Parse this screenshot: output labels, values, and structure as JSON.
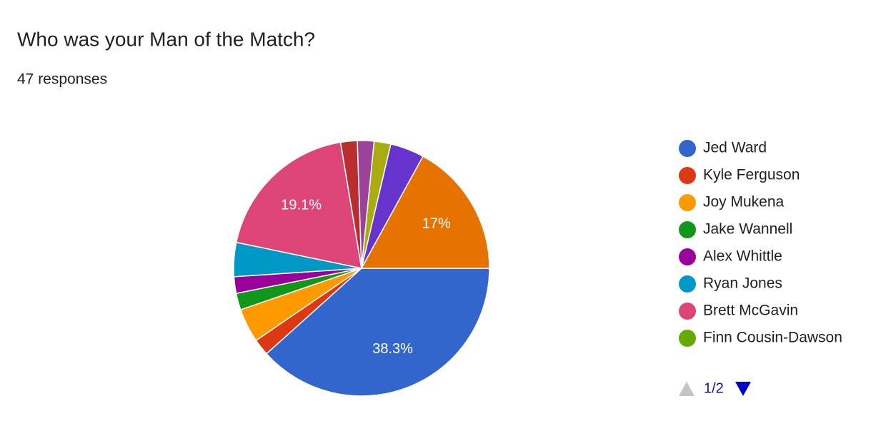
{
  "chart_data": {
    "type": "pie",
    "title": "Who was your Man of the Match?",
    "subtitle": "47 responses",
    "categories": [
      "Jed Ward",
      "Kyle Ferguson",
      "Joy Mukena",
      "Jake Wannell",
      "Alex Whittle",
      "Ryan Jones",
      "Brett McGavin",
      "Finn Cousin-Dawson",
      null,
      null,
      null,
      null,
      null
    ],
    "values": [
      38.3,
      2.1,
      4.3,
      2.1,
      2.1,
      4.3,
      19.1,
      0,
      2.1,
      2.1,
      2.1,
      4.3,
      17
    ],
    "value_labels": [
      "38.3%",
      null,
      null,
      null,
      null,
      null,
      "19.1%",
      null,
      null,
      null,
      null,
      null,
      "17%"
    ],
    "colors": [
      "#3366cc",
      "#dc3912",
      "#ff9900",
      "#109618",
      "#990099",
      "#0099c6",
      "#dd4477",
      "#66aa00",
      "#b82e2e",
      "#994499",
      "#aaaa11",
      "#6633cc",
      "#e67300"
    ],
    "legend_page": "1/2"
  }
}
